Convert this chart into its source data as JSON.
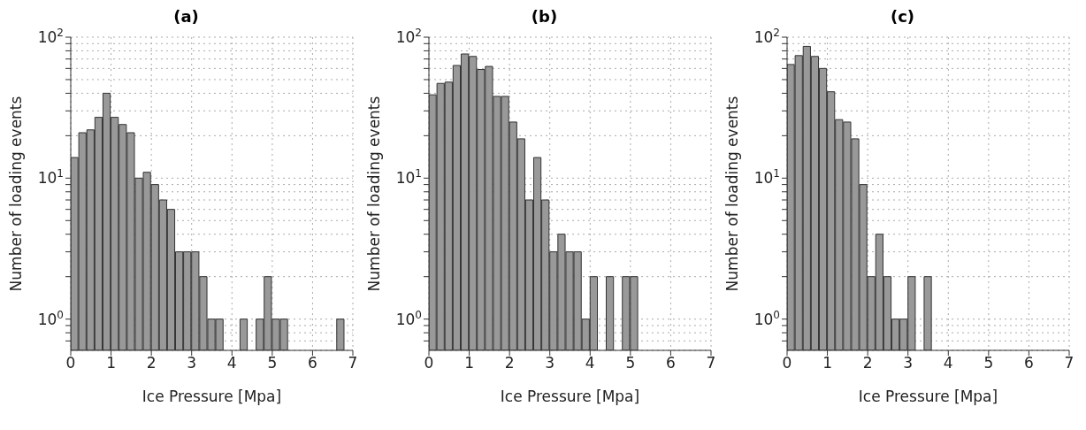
{
  "chart_data": [
    {
      "type": "histogram",
      "title": "(a)",
      "xlabel": "Ice Pressure [Mpa]",
      "ylabel": "Number of loading events",
      "color": "#999999",
      "log": true,
      "grid": true,
      "bins": [
        0,
        0.2,
        0.4,
        0.6,
        0.8,
        1,
        1.2,
        1.4,
        1.6,
        1.8,
        2,
        2.2,
        2.4,
        2.6,
        2.8,
        3,
        3.2,
        3.4,
        3.6,
        3.8,
        4,
        4.2,
        4.4,
        4.6,
        4.8,
        5,
        5.2,
        5.4,
        5.6,
        5.8,
        6,
        6.2,
        6.4,
        6.6,
        6.8,
        7
      ],
      "values": [
        14,
        21,
        22,
        27,
        40,
        27,
        24,
        21,
        10,
        11,
        9,
        7,
        6,
        3,
        3,
        3,
        2,
        1,
        1,
        null,
        null,
        1,
        null,
        1,
        2,
        1,
        1,
        null,
        null,
        null,
        null,
        null,
        null,
        1,
        null
      ],
      "xlim": [
        0,
        7
      ],
      "xticks": [
        0,
        1,
        2,
        3,
        4,
        5,
        6,
        7
      ],
      "ylim": [
        0.6,
        100
      ],
      "yticks": [
        {
          "value": 0.7,
          "label": null
        },
        {
          "value": 0.8,
          "label": null
        },
        {
          "value": 0.9,
          "label": null
        },
        {
          "value": 1,
          "label": "10$^{0}$"
        },
        {
          "value": 2,
          "label": null
        },
        {
          "value": 3,
          "label": null
        },
        {
          "value": 4,
          "label": null
        },
        {
          "value": 5,
          "label": null
        },
        {
          "value": 6,
          "label": null
        },
        {
          "value": 7,
          "label": null
        },
        {
          "value": 8,
          "label": null
        },
        {
          "value": 9,
          "label": null
        },
        {
          "value": 10,
          "label": "10$^{1}$"
        },
        {
          "value": 20,
          "label": null
        },
        {
          "value": 30,
          "label": null
        },
        {
          "value": 40,
          "label": null
        },
        {
          "value": 50,
          "label": null
        },
        {
          "value": 60,
          "label": null
        },
        {
          "value": 70,
          "label": null
        },
        {
          "value": 80,
          "label": null
        },
        {
          "value": 90,
          "label": null
        },
        {
          "value": 100,
          "label": "10$^{2}$"
        }
      ]
    },
    {
      "type": "histogram",
      "title": "(b)",
      "xlabel": "Ice Pressure [Mpa]",
      "ylabel": "Number of loading events",
      "color": "#999999",
      "log": true,
      "grid": true,
      "bins": [
        0,
        0.2,
        0.4,
        0.6,
        0.8,
        1,
        1.2,
        1.4,
        1.6,
        1.8,
        2,
        2.2,
        2.4,
        2.6,
        2.8,
        3,
        3.2,
        3.4,
        3.6,
        3.8,
        4,
        4.2,
        4.4,
        4.6,
        4.8,
        5,
        5.2,
        5.4,
        5.6,
        5.8,
        6,
        6.2,
        6.4,
        6.6,
        6.8,
        7
      ],
      "values": [
        39,
        47,
        48,
        63,
        76,
        73,
        59,
        62,
        38,
        38,
        25,
        19,
        7,
        14,
        7,
        3,
        4,
        3,
        3,
        1,
        2,
        null,
        2,
        null,
        2,
        2,
        null,
        null,
        null,
        null,
        null,
        null,
        null,
        null,
        null
      ],
      "xlim": [
        0,
        7
      ],
      "xticks": [
        0,
        1,
        2,
        3,
        4,
        5,
        6,
        7
      ],
      "ylim": [
        0.6,
        100
      ],
      "yticks": [
        {
          "value": 0.7,
          "label": null
        },
        {
          "value": 0.8,
          "label": null
        },
        {
          "value": 0.9,
          "label": null
        },
        {
          "value": 1,
          "label": "10$^{0}$"
        },
        {
          "value": 2,
          "label": null
        },
        {
          "value": 3,
          "label": null
        },
        {
          "value": 4,
          "label": null
        },
        {
          "value": 5,
          "label": null
        },
        {
          "value": 6,
          "label": null
        },
        {
          "value": 7,
          "label": null
        },
        {
          "value": 8,
          "label": null
        },
        {
          "value": 9,
          "label": null
        },
        {
          "value": 10,
          "label": "10$^{1}$"
        },
        {
          "value": 20,
          "label": null
        },
        {
          "value": 30,
          "label": null
        },
        {
          "value": 40,
          "label": null
        },
        {
          "value": 50,
          "label": null
        },
        {
          "value": 60,
          "label": null
        },
        {
          "value": 70,
          "label": null
        },
        {
          "value": 80,
          "label": null
        },
        {
          "value": 90,
          "label": null
        },
        {
          "value": 100,
          "label": "10$^{2}$"
        }
      ]
    },
    {
      "type": "histogram",
      "title": "(c)",
      "xlabel": "Ice Pressure [Mpa]",
      "ylabel": "Number of loading events",
      "color": "#999999",
      "log": true,
      "grid": true,
      "bins": [
        0,
        0.2,
        0.4,
        0.6,
        0.8,
        1,
        1.2,
        1.4,
        1.6,
        1.8,
        2,
        2.2,
        2.4,
        2.6,
        2.8,
        3,
        3.2,
        3.4,
        3.6,
        3.8,
        4,
        4.2,
        4.4,
        4.6,
        4.8,
        5,
        5.2,
        5.4,
        5.6,
        5.8,
        6,
        6.2,
        6.4,
        6.6,
        6.8,
        7
      ],
      "values": [
        64,
        74,
        86,
        73,
        60,
        41,
        26,
        25,
        19,
        9,
        2,
        4,
        2,
        1,
        1,
        2,
        null,
        2,
        null,
        null,
        null,
        null,
        null,
        null,
        null,
        null,
        null,
        null,
        null,
        null,
        null,
        null,
        null,
        null,
        null
      ],
      "xlim": [
        0,
        7
      ],
      "xticks": [
        0,
        1,
        2,
        3,
        4,
        5,
        6,
        7
      ],
      "ylim": [
        0.6,
        100
      ],
      "yticks": [
        {
          "value": 0.7,
          "label": null
        },
        {
          "value": 0.8,
          "label": null
        },
        {
          "value": 0.9,
          "label": null
        },
        {
          "value": 1,
          "label": "10$^{0}$"
        },
        {
          "value": 2,
          "label": null
        },
        {
          "value": 3,
          "label": null
        },
        {
          "value": 4,
          "label": null
        },
        {
          "value": 5,
          "label": null
        },
        {
          "value": 6,
          "label": null
        },
        {
          "value": 7,
          "label": null
        },
        {
          "value": 8,
          "label": null
        },
        {
          "value": 9,
          "label": null
        },
        {
          "value": 10,
          "label": "10$^{1}$"
        },
        {
          "value": 20,
          "label": null
        },
        {
          "value": 30,
          "label": null
        },
        {
          "value": 40,
          "label": null
        },
        {
          "value": 50,
          "label": null
        },
        {
          "value": 60,
          "label": null
        },
        {
          "value": 70,
          "label": null
        },
        {
          "value": 80,
          "label": null
        },
        {
          "value": 90,
          "label": null
        },
        {
          "value": 100,
          "label": "10$^{2}$"
        }
      ]
    }
  ]
}
